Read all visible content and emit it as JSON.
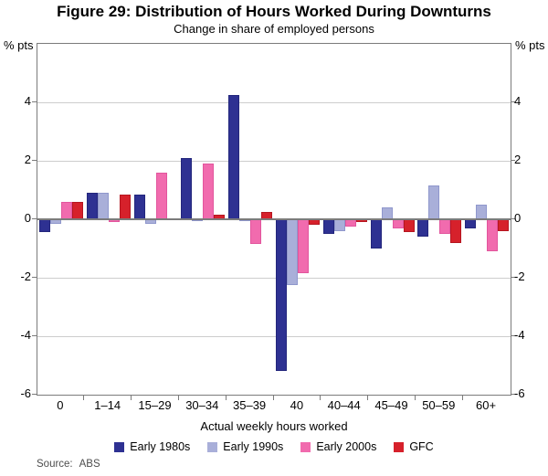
{
  "figure": {
    "title": "Figure 29: Distribution of Hours Worked During Downturns",
    "subtitle": "Change in share of employed persons",
    "unit_left": "% pts",
    "unit_right": "% pts",
    "source_label": "Source:",
    "source_value": "ABS"
  },
  "chart_data": {
    "type": "bar",
    "title": "Figure 29: Distribution of Hours Worked During Downturns",
    "subtitle": "Change in share of employed persons",
    "xlabel": "Actual weekly hours worked",
    "ylabel": "% pts",
    "ylim": [
      -6,
      6
    ],
    "ytick_step": 2,
    "yticks_labeled": [
      4,
      2,
      0,
      -2,
      -4,
      -6
    ],
    "grid": true,
    "legend_position": "bottom",
    "categories": [
      "0",
      "1–14",
      "15–29",
      "30–34",
      "35–39",
      "40",
      "40–44",
      "45–49",
      "50–59",
      "60+"
    ],
    "series": [
      {
        "name": "Early 1980s",
        "color": "#2E3192",
        "border_color": "#23267C",
        "values": [
          -0.45,
          0.9,
          0.85,
          2.1,
          4.25,
          -5.2,
          -0.5,
          -1.0,
          -0.6,
          -0.3
        ]
      },
      {
        "name": "Early 1990s",
        "color": "#A9AFD9",
        "border_color": "#8F97CC",
        "values": [
          -0.15,
          0.9,
          -0.15,
          -0.05,
          -0.05,
          -2.25,
          -0.4,
          0.4,
          1.15,
          0.5
        ]
      },
      {
        "name": "Early 2000s",
        "color": "#F16BAE",
        "border_color": "#E2559D",
        "values": [
          0.6,
          -0.1,
          1.6,
          1.9,
          -0.85,
          -1.85,
          -0.25,
          -0.3,
          -0.5,
          -1.1
        ]
      },
      {
        "name": "GFC",
        "color": "#D6212B",
        "border_color": "#B51620",
        "values": [
          0.6,
          0.85,
          0.0,
          0.15,
          0.25,
          -0.2,
          -0.1,
          -0.45,
          -0.8,
          -0.4
        ]
      }
    ],
    "source": "ABS"
  }
}
